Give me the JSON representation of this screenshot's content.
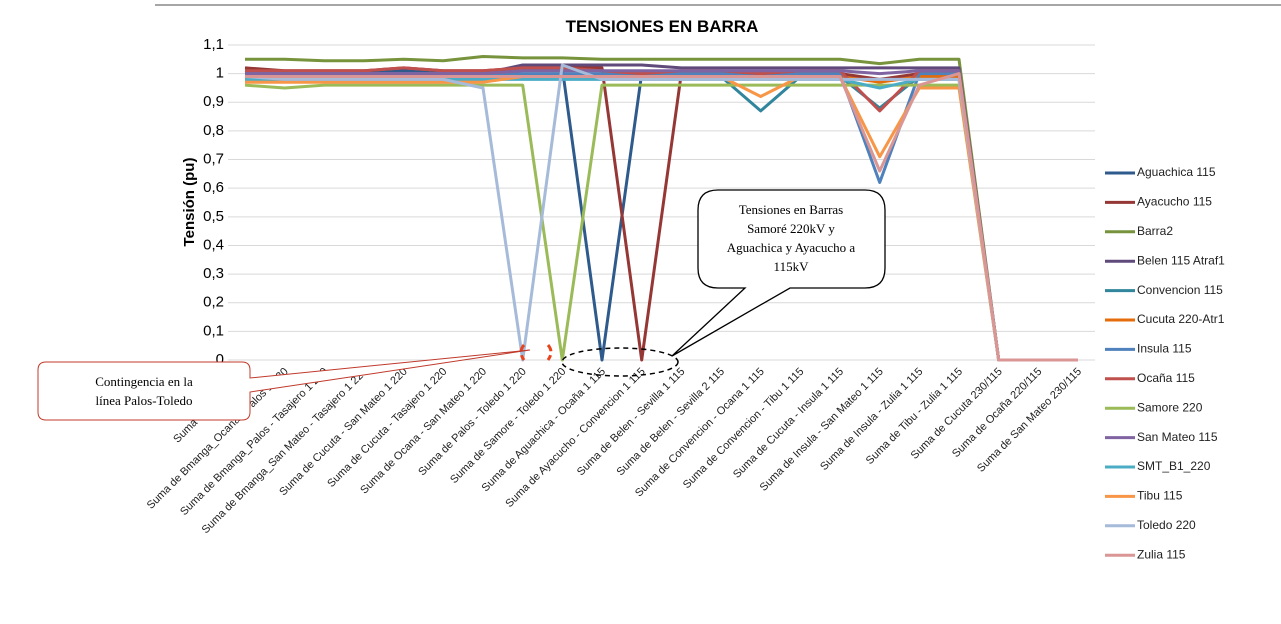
{
  "chart_data": {
    "type": "line",
    "title": "TENSIONES EN BARRA",
    "y_label": "Tensión (pu)",
    "categories": [
      "Suma de Caso Base",
      "Suma de Bmanga_Ocana - Palos 1 220",
      "Suma de Bmanga_Palos - Tasajero 1 220",
      "Suma de Bmanga_San Mateo - Tasajero 1 220",
      "Suma de Cucuta - San Mateo 1 220",
      "Suma de Cucuta - Tasajero 1 220",
      "Suma de Ocana - San Mateo 1 220",
      "Suma de Palos - Toledo 1 220",
      "Suma de Samore - Toledo 1 220",
      "Suma de Aguachica - Ocaña 1 115",
      "Suma de Ayacucho - Convencion 1 115",
      "Suma de Belen - Sevilla 1 115",
      "Suma de Belen - Sevilla 2 115",
      "Suma de Convencion - Ocana 1 115",
      "Suma de Convencion - Tibu 1 115",
      "Suma de Cucuta - Insula 1 115",
      "Suma de Insula - San Mateo 1 115",
      "Suma de Insula - Zulia 1 115",
      "Suma de Tibu - Zulia 1 115",
      "Suma de Cucuta 230/115",
      "Suma de Ocaña 220/115",
      "Suma de San Mateo 230/115"
    ],
    "series": [
      {
        "name": "Aguachica 115",
        "color": "#2e5a8c",
        "values": [
          1.01,
          1.0,
          1.0,
          1.0,
          1.01,
          1.0,
          1.0,
          1.02,
          1.02,
          0,
          1.0,
          1.0,
          1.0,
          1.0,
          1.0,
          1.0,
          0.97,
          1.0,
          1.0,
          0,
          0,
          0
        ]
      },
      {
        "name": "Ayacucho 115",
        "color": "#953735",
        "values": [
          1.02,
          1.01,
          1.01,
          1.01,
          1.02,
          1.01,
          1.01,
          1.02,
          1.02,
          1.02,
          0,
          1.0,
          1.0,
          1.0,
          1.0,
          1.0,
          0.98,
          1.0,
          1.0,
          0,
          0,
          0
        ]
      },
      {
        "name": "Barra2",
        "color": "#77933c",
        "values": [
          1.05,
          1.05,
          1.045,
          1.045,
          1.05,
          1.045,
          1.06,
          1.055,
          1.055,
          1.05,
          1.05,
          1.05,
          1.05,
          1.05,
          1.05,
          1.05,
          1.035,
          1.05,
          1.05,
          0,
          0,
          0
        ]
      },
      {
        "name": "Belen 115 Atraf1",
        "color": "#604a7b",
        "values": [
          1.0,
          1.0,
          1.0,
          1.0,
          1.0,
          1.0,
          1.0,
          1.03,
          1.03,
          1.03,
          1.03,
          1.02,
          1.02,
          1.02,
          1.02,
          1.02,
          1.02,
          1.02,
          1.02,
          0,
          0,
          0
        ]
      },
      {
        "name": "Convencion 115",
        "color": "#31859c",
        "values": [
          0.99,
          0.99,
          0.99,
          0.99,
          0.99,
          0.99,
          0.99,
          0.99,
          0.99,
          0.99,
          0.99,
          0.99,
          0.99,
          0.87,
          0.99,
          0.99,
          0.88,
          0.99,
          0.99,
          0,
          0,
          0
        ]
      },
      {
        "name": "Cucuta 220-Atr1",
        "color": "#e46c0a",
        "values": [
          0.98,
          0.98,
          0.98,
          0.98,
          0.98,
          0.98,
          0.98,
          0.99,
          0.99,
          0.99,
          0.99,
          0.99,
          0.99,
          0.99,
          0.99,
          0.99,
          0.97,
          0.99,
          0.99,
          0,
          0,
          0
        ]
      },
      {
        "name": "Insula 115",
        "color": "#4f81bd",
        "values": [
          1.0,
          1.0,
          1.0,
          1.0,
          1.0,
          1.0,
          1.0,
          1.0,
          1.0,
          1.0,
          1.0,
          1.0,
          1.0,
          0.99,
          1.0,
          1.0,
          0.62,
          1.0,
          1.0,
          0,
          0,
          0
        ]
      },
      {
        "name": "Ocaña 115",
        "color": "#c0504d",
        "values": [
          1.01,
          1.01,
          1.01,
          1.01,
          1.02,
          1.01,
          1.01,
          1.02,
          1.02,
          1.01,
          1.0,
          1.01,
          1.01,
          1.0,
          1.01,
          1.01,
          0.87,
          1.01,
          1.01,
          0,
          0,
          0
        ]
      },
      {
        "name": "Samore 220",
        "color": "#9bbb59",
        "values": [
          0.96,
          0.95,
          0.96,
          0.96,
          0.96,
          0.96,
          0.96,
          0.96,
          0,
          0.96,
          0.96,
          0.96,
          0.96,
          0.96,
          0.96,
          0.96,
          0.96,
          0.96,
          0.96,
          0,
          0,
          0
        ]
      },
      {
        "name": "San Mateo 115",
        "color": "#8064a2",
        "values": [
          1.0,
          1.0,
          1.0,
          1.0,
          1.0,
          1.0,
          1.0,
          1.01,
          1.01,
          1.01,
          1.01,
          1.01,
          1.01,
          1.01,
          1.01,
          1.01,
          1.0,
          1.01,
          1.01,
          0,
          0,
          0
        ]
      },
      {
        "name": "SMT_B1_220",
        "color": "#4bacc6",
        "values": [
          0.98,
          0.98,
          0.98,
          0.98,
          0.98,
          0.98,
          0.98,
          0.98,
          0.98,
          0.98,
          0.98,
          0.98,
          0.98,
          0.98,
          0.98,
          0.98,
          0.95,
          0.98,
          0.98,
          0,
          0,
          0
        ]
      },
      {
        "name": "Tibu 115",
        "color": "#f79646",
        "values": [
          0.97,
          0.97,
          0.97,
          0.97,
          0.97,
          0.97,
          0.97,
          0.99,
          0.99,
          0.99,
          0.99,
          0.99,
          0.99,
          0.92,
          0.99,
          0.99,
          0.71,
          0.95,
          0.95,
          0,
          0,
          0
        ]
      },
      {
        "name": "Toledo 220",
        "color": "#a6bad9",
        "values": [
          0.99,
          0.98,
          0.98,
          0.98,
          0.98,
          0.98,
          0.95,
          0,
          1.03,
          0.98,
          0.98,
          0.98,
          0.98,
          0.98,
          0.98,
          0.98,
          0.98,
          0.98,
          0.98,
          0,
          0,
          0
        ]
      },
      {
        "name": "Zulia 115",
        "color": "#d99694",
        "values": [
          0.99,
          0.99,
          0.99,
          0.99,
          0.99,
          0.99,
          0.99,
          0.99,
          0.99,
          0.99,
          0.99,
          0.99,
          0.99,
          0.99,
          0.99,
          0.99,
          0.66,
          0.96,
          1.0,
          0,
          0,
          0
        ]
      }
    ],
    "ylim": [
      0,
      1.1
    ],
    "yticks": [
      0,
      {
        "value": 0.1,
        "label": "0,1"
      },
      {
        "value": 0.2,
        "label": "0,2"
      },
      {
        "value": 0.3,
        "label": "0,3"
      },
      {
        "value": 0.4,
        "label": "0,4"
      },
      {
        "value": 0.5,
        "label": "0,5"
      },
      {
        "value": 0.6,
        "label": "0,6"
      },
      {
        "value": 0.7,
        "label": "0,7"
      },
      {
        "value": 0.8,
        "label": "0,8"
      },
      {
        "value": 0.9,
        "label": "0,9"
      },
      1,
      {
        "value": 1.1,
        "label": "1,1"
      }
    ],
    "grid": true,
    "legend": "right",
    "annotations": [
      {
        "lines": [
          "Tensiones en Barras",
          "Samoré 220kV y",
          "Aguachica y Ayacucho a",
          "115kV"
        ]
      },
      {
        "lines": [
          "Contingencia en la",
          "línea Palos-Toledo"
        ]
      }
    ]
  }
}
